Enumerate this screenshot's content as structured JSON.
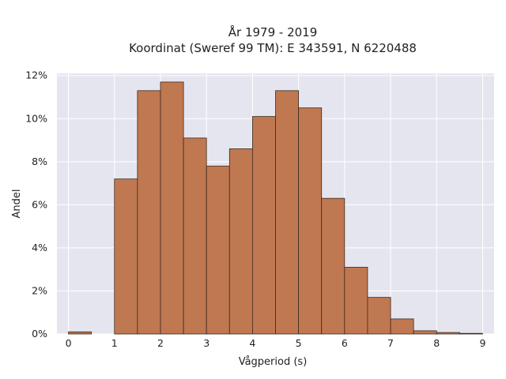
{
  "chart_data": {
    "type": "bar",
    "title_lines": [
      "År 1979 - 2019",
      "Koordinat (Sweref 99 TM): E 343591, N 6220488"
    ],
    "xlabel": "Vågperiod (s)",
    "ylabel": "Andel",
    "xlim": [
      -0.25,
      9.25
    ],
    "ylim": [
      0,
      0.121
    ],
    "x_ticks": [
      0,
      1,
      2,
      3,
      4,
      5,
      6,
      7,
      8,
      9
    ],
    "y_ticks": [
      0,
      0.02,
      0.04,
      0.06,
      0.08,
      0.1,
      0.12
    ],
    "y_tick_labels": [
      "0%",
      "2%",
      "4%",
      "6%",
      "8%",
      "10%",
      "12%"
    ],
    "bin_width": 0.5,
    "bins": [
      {
        "x0": 0.0,
        "x1": 0.5,
        "value": 0.001
      },
      {
        "x0": 0.5,
        "x1": 1.0,
        "value": 0.0
      },
      {
        "x0": 1.0,
        "x1": 1.5,
        "value": 0.072
      },
      {
        "x0": 1.5,
        "x1": 2.0,
        "value": 0.113
      },
      {
        "x0": 2.0,
        "x1": 2.5,
        "value": 0.117
      },
      {
        "x0": 2.5,
        "x1": 3.0,
        "value": 0.091
      },
      {
        "x0": 3.0,
        "x1": 3.5,
        "value": 0.078
      },
      {
        "x0": 3.5,
        "x1": 4.0,
        "value": 0.086
      },
      {
        "x0": 4.0,
        "x1": 4.5,
        "value": 0.101
      },
      {
        "x0": 4.5,
        "x1": 5.0,
        "value": 0.113
      },
      {
        "x0": 5.0,
        "x1": 5.5,
        "value": 0.105
      },
      {
        "x0": 5.5,
        "x1": 6.0,
        "value": 0.063
      },
      {
        "x0": 6.0,
        "x1": 6.5,
        "value": 0.031
      },
      {
        "x0": 6.5,
        "x1": 7.0,
        "value": 0.017
      },
      {
        "x0": 7.0,
        "x1": 7.5,
        "value": 0.007
      },
      {
        "x0": 7.5,
        "x1": 8.0,
        "value": 0.0015
      },
      {
        "x0": 8.0,
        "x1": 8.5,
        "value": 0.0007
      },
      {
        "x0": 8.5,
        "x1": 9.0,
        "value": 0.0003
      }
    ],
    "grid": true,
    "colors": {
      "bar_fill": "#c07850",
      "bar_edge": "#3b2a20",
      "plot_background": "#e5e5ef",
      "grid": "#ffffff"
    }
  }
}
